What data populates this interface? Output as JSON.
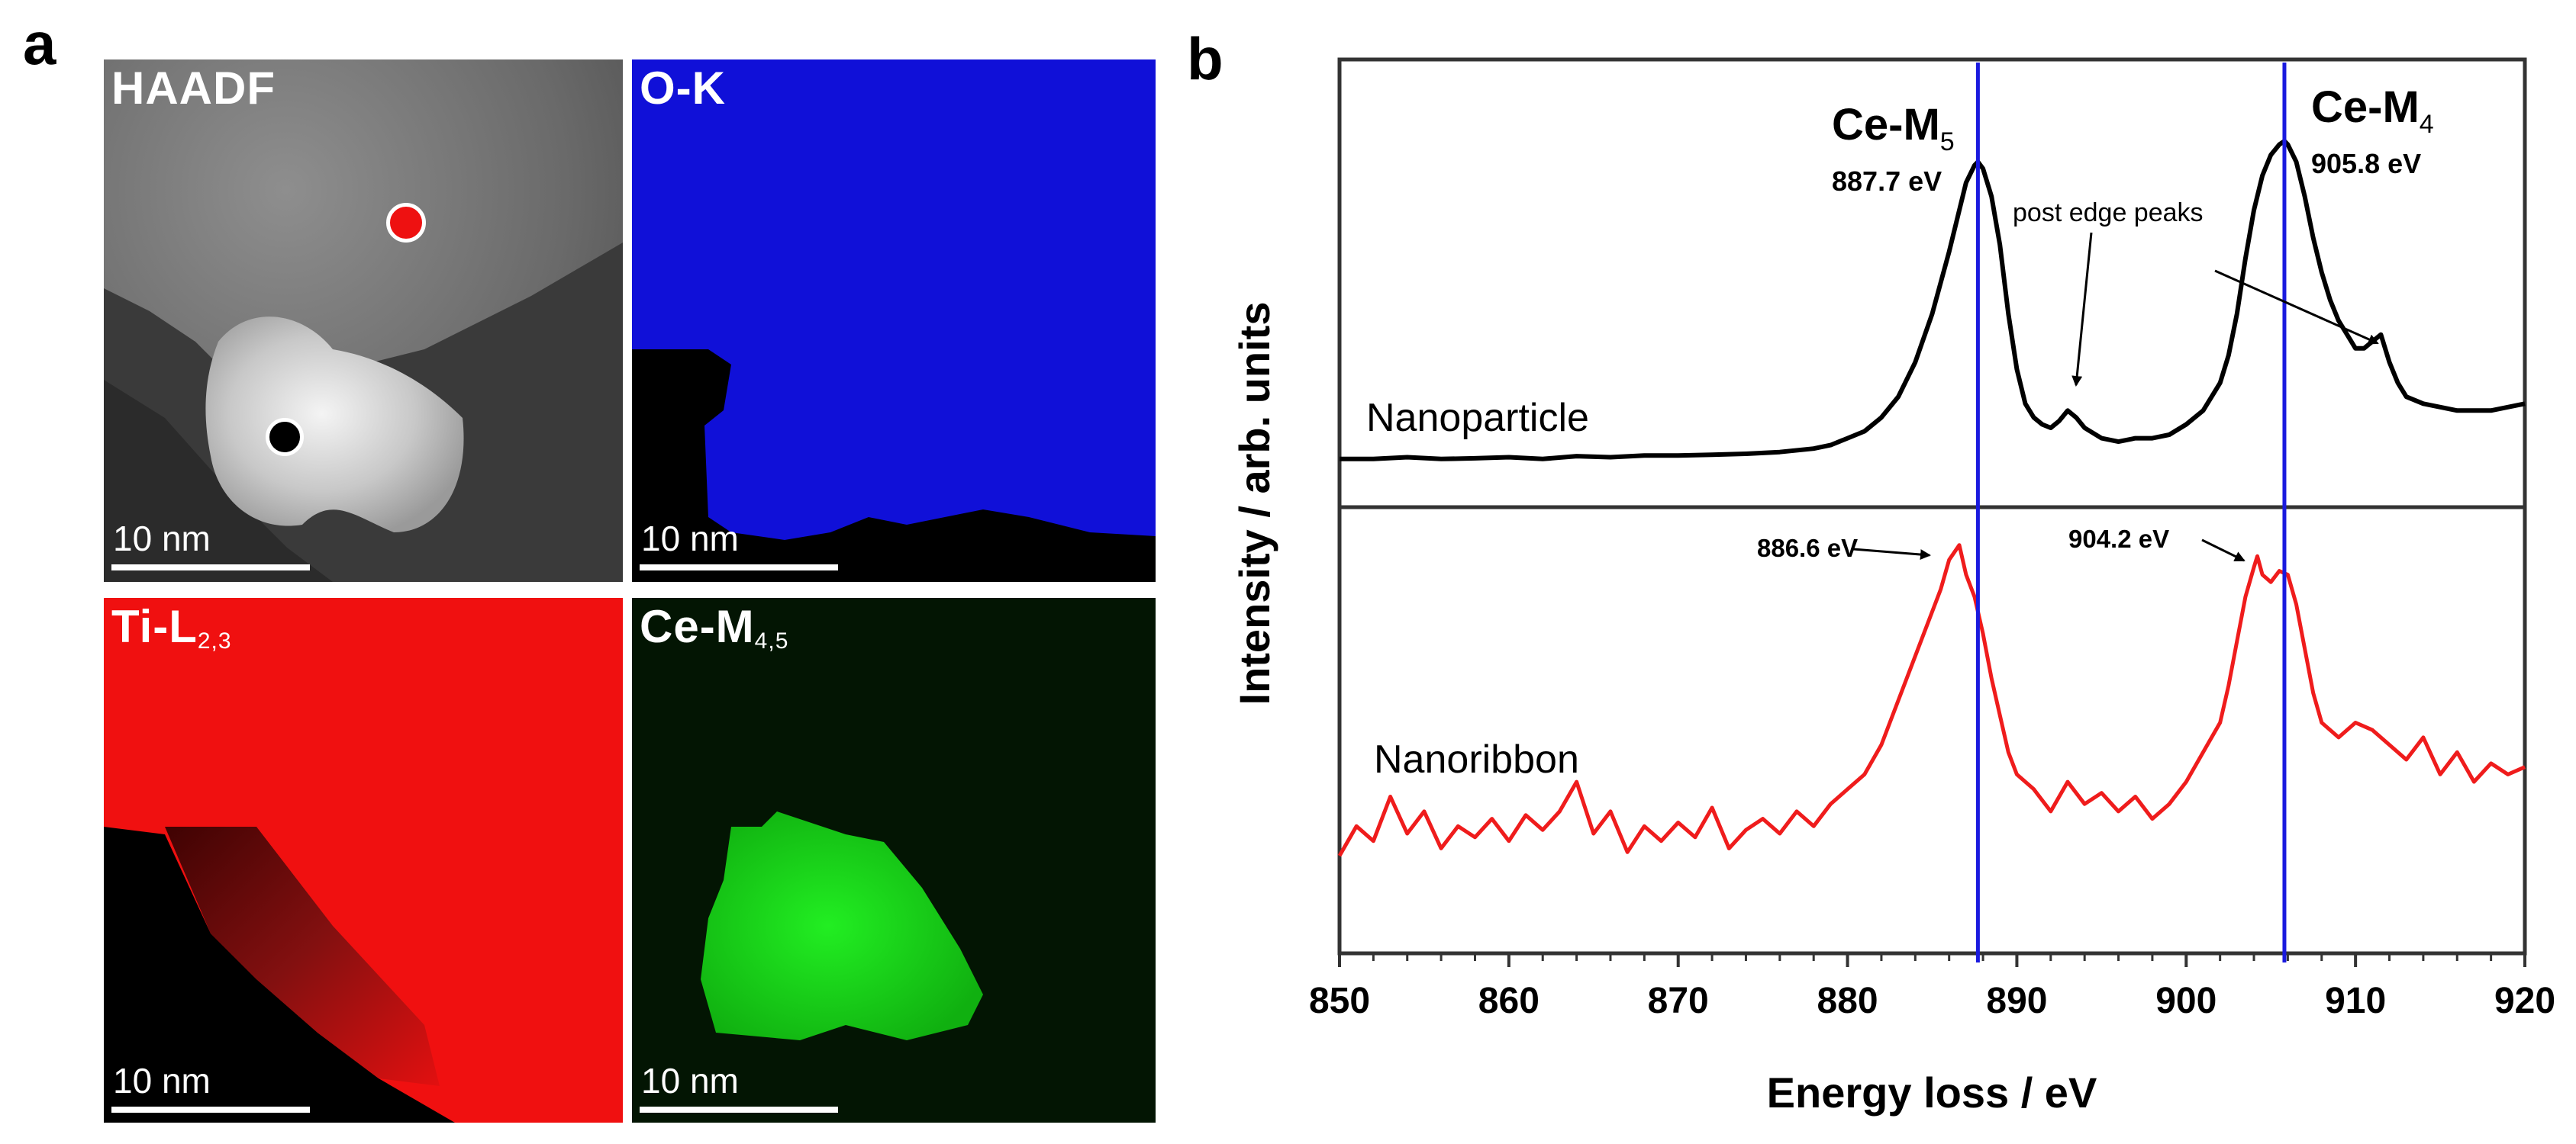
{
  "panel_a": {
    "letter": "a",
    "tiles": [
      {
        "id": "haadf",
        "label_main": "HAADF",
        "label_sub": "",
        "scale_bar_label": "10 nm"
      },
      {
        "id": "o-k",
        "label_main": "O-K",
        "label_sub": "",
        "scale_bar_label": "10 nm"
      },
      {
        "id": "ti-l",
        "label_main": "Ti-L",
        "label_sub": "2,3",
        "scale_bar_label": "10 nm"
      },
      {
        "id": "ce-m",
        "label_main": "Ce-M",
        "label_sub": "4,5",
        "scale_bar_label": "10 nm"
      }
    ],
    "colors": {
      "haadf": "#7a7a7a",
      "oxygen": "#1010d8",
      "titanium": "#f01010",
      "cerium": "#16d416"
    }
  },
  "panel_b": {
    "letter": "b",
    "chart_data": {
      "type": "line",
      "xlabel": "Energy loss / eV",
      "ylabel": "Intensity  / arb. units",
      "xlim": [
        850,
        920
      ],
      "xticks": [
        850,
        860,
        870,
        880,
        890,
        900,
        910,
        920
      ],
      "ylim_top_panel": [
        0,
        1
      ],
      "ylim_bottom_panel": [
        0,
        1
      ],
      "reference_lines": [
        {
          "x": 887.7,
          "label_main": "Ce-M",
          "label_sub": "5",
          "energy_label": "887.7 eV",
          "color": "#1a1adf"
        },
        {
          "x": 905.8,
          "label_main": "Ce-M",
          "label_sub": "4",
          "energy_label": "905.8 eV",
          "color": "#1a1adf"
        }
      ],
      "annotations": [
        {
          "text": "post edge peaks",
          "targets_x": [
            893.2,
            911.2
          ]
        },
        {
          "text": "886.6 eV",
          "x": 886.6
        },
        {
          "text": "904.2 eV",
          "x": 904.2
        }
      ],
      "series": [
        {
          "name": "Nanoparticle",
          "panel": "top",
          "color": "#000000",
          "x": [
            850,
            852,
            854,
            856,
            858,
            860,
            862,
            864,
            866,
            868,
            870,
            872,
            874,
            876,
            878,
            879,
            880,
            881,
            882,
            883,
            884,
            885,
            886,
            886.5,
            887,
            887.5,
            887.7,
            888,
            888.5,
            889,
            889.5,
            890,
            890.5,
            891,
            891.5,
            892,
            892.5,
            893,
            893.5,
            894,
            895,
            896,
            897,
            898,
            899,
            900,
            901,
            902,
            902.5,
            903,
            903.5,
            904,
            904.5,
            905,
            905.5,
            905.8,
            906,
            906.5,
            907,
            907.5,
            908,
            908.5,
            909,
            909.5,
            910,
            910.5,
            911,
            911.5,
            912,
            912.5,
            913,
            914,
            915,
            916,
            917,
            918,
            919,
            920
          ],
          "y": [
            0.08,
            0.08,
            0.085,
            0.08,
            0.082,
            0.085,
            0.08,
            0.088,
            0.085,
            0.09,
            0.09,
            0.092,
            0.095,
            0.1,
            0.11,
            0.12,
            0.14,
            0.16,
            0.2,
            0.26,
            0.36,
            0.5,
            0.68,
            0.78,
            0.88,
            0.93,
            0.94,
            0.92,
            0.84,
            0.7,
            0.5,
            0.34,
            0.24,
            0.2,
            0.18,
            0.17,
            0.19,
            0.22,
            0.2,
            0.17,
            0.14,
            0.13,
            0.14,
            0.14,
            0.15,
            0.18,
            0.22,
            0.3,
            0.38,
            0.5,
            0.66,
            0.8,
            0.9,
            0.96,
            0.99,
            1.0,
            0.99,
            0.94,
            0.84,
            0.72,
            0.62,
            0.54,
            0.48,
            0.44,
            0.4,
            0.4,
            0.42,
            0.44,
            0.36,
            0.3,
            0.26,
            0.24,
            0.23,
            0.22,
            0.22,
            0.22,
            0.23,
            0.24
          ]
        },
        {
          "name": "Nanoribbon",
          "panel": "bottom",
          "color": "#ef1c1c",
          "x": [
            850,
            851,
            852,
            853,
            854,
            855,
            856,
            857,
            858,
            859,
            860,
            861,
            862,
            863,
            864,
            865,
            866,
            867,
            868,
            869,
            870,
            871,
            872,
            873,
            874,
            875,
            876,
            877,
            878,
            879,
            880,
            881,
            882,
            883,
            884,
            885,
            885.5,
            886,
            886.6,
            887,
            887.5,
            888,
            888.5,
            889,
            889.5,
            890,
            891,
            892,
            893,
            894,
            895,
            896,
            897,
            898,
            899,
            900,
            901,
            902,
            902.5,
            903,
            903.5,
            904,
            904.2,
            904.5,
            905,
            905.5,
            906,
            906.5,
            907,
            907.5,
            908,
            909,
            910,
            911,
            912,
            913,
            914,
            915,
            916,
            917,
            918,
            919,
            920
          ],
          "y": [
            0.14,
            0.22,
            0.18,
            0.3,
            0.2,
            0.26,
            0.16,
            0.22,
            0.19,
            0.24,
            0.18,
            0.25,
            0.21,
            0.26,
            0.34,
            0.2,
            0.26,
            0.15,
            0.22,
            0.18,
            0.23,
            0.19,
            0.27,
            0.16,
            0.21,
            0.24,
            0.2,
            0.26,
            0.22,
            0.28,
            0.32,
            0.36,
            0.44,
            0.56,
            0.68,
            0.8,
            0.86,
            0.94,
            0.98,
            0.9,
            0.84,
            0.74,
            0.62,
            0.52,
            0.42,
            0.36,
            0.32,
            0.26,
            0.34,
            0.28,
            0.31,
            0.26,
            0.3,
            0.24,
            0.28,
            0.34,
            0.42,
            0.5,
            0.6,
            0.72,
            0.84,
            0.92,
            0.95,
            0.9,
            0.88,
            0.91,
            0.9,
            0.82,
            0.7,
            0.58,
            0.5,
            0.46,
            0.5,
            0.48,
            0.44,
            0.4,
            0.46,
            0.36,
            0.42,
            0.34,
            0.39,
            0.36,
            0.38
          ]
        }
      ]
    }
  }
}
